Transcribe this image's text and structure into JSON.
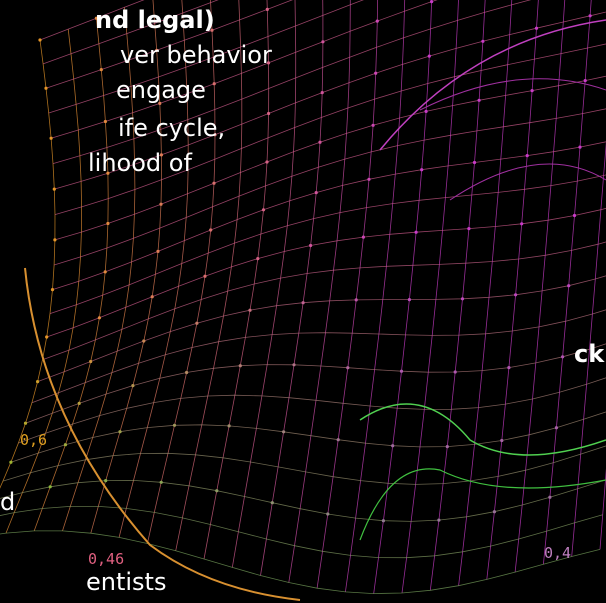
{
  "text_lines": [
    "nd legal)",
    "ver behavior",
    "engage",
    "ife cycle,",
    "lihood of",
    "ck",
    "d",
    "entists"
  ],
  "axis_labels": [
    "0,6",
    "0,46",
    "0,4"
  ]
}
